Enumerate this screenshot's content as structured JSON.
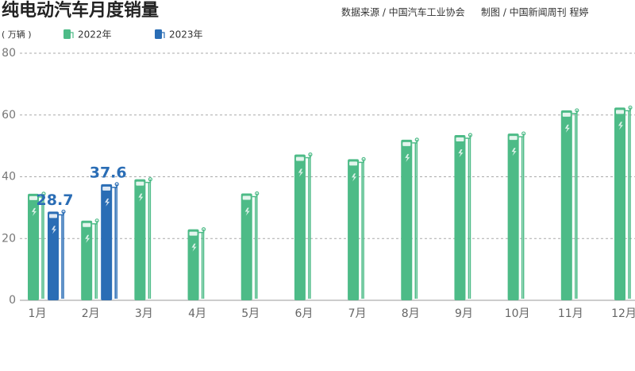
{
  "chart_data": {
    "type": "bar",
    "title": "纯电动汽车月度销量",
    "source": "数据来源 / 中国汽车工业协会",
    "credit": "制图 / 中国新闻周刊 程婷",
    "y_label": "( 万辆 )",
    "categories": [
      "1月",
      "2月",
      "3月",
      "4月",
      "5月",
      "6月",
      "7月",
      "8月",
      "9月",
      "10月",
      "11月",
      "12月"
    ],
    "series": [
      {
        "name": "2022年",
        "color": "#4dbb87",
        "values": [
          34.5,
          25.8,
          39.2,
          23,
          34.6,
          47.2,
          45.7,
          52,
          53.5,
          54,
          61.5,
          62.4
        ]
      },
      {
        "name": "2023年",
        "color": "#2a6db5",
        "values": [
          28.7,
          37.6,
          null,
          null,
          null,
          null,
          null,
          null,
          null,
          null,
          null,
          null
        ]
      }
    ],
    "ylim": [
      0,
      80
    ],
    "yticks": [
      0,
      20,
      40,
      60,
      80
    ],
    "grid": true
  }
}
